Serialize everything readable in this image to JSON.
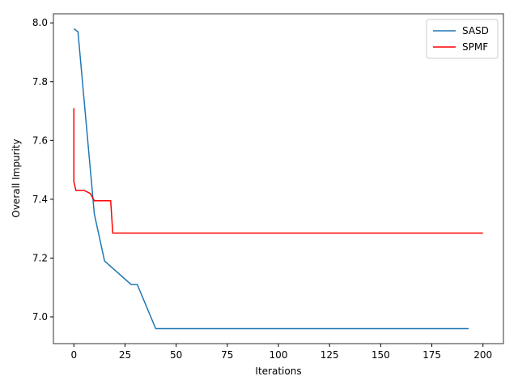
{
  "chart_data": {
    "type": "line",
    "xlabel": "Iterations",
    "ylabel": "Overall Impurity",
    "series": [
      {
        "name": "SASD",
        "color": "#1f77b4",
        "x": [
          0,
          2,
          10,
          15,
          28,
          31,
          40,
          193
        ],
        "values": [
          7.98,
          7.97,
          7.35,
          7.19,
          7.11,
          7.11,
          6.96,
          6.96
        ]
      },
      {
        "name": "SPMF",
        "color": "#ff0000",
        "x": [
          0,
          0,
          1,
          5,
          8,
          10,
          18,
          19,
          200
        ],
        "values": [
          7.71,
          7.46,
          7.43,
          7.43,
          7.42,
          7.395,
          7.395,
          7.285,
          7.285
        ]
      }
    ],
    "xlim": [
      -10,
      210
    ],
    "ylim": [
      6.909,
      8.031
    ],
    "xticks": [
      0,
      25,
      50,
      75,
      100,
      125,
      150,
      175,
      200
    ],
    "yticks": [
      {
        "value": 7,
        "label": "7.0"
      },
      7.2,
      7.4,
      7.6,
      7.8,
      {
        "value": 8,
        "label": "8.0"
      }
    ],
    "legend": "upper right"
  }
}
